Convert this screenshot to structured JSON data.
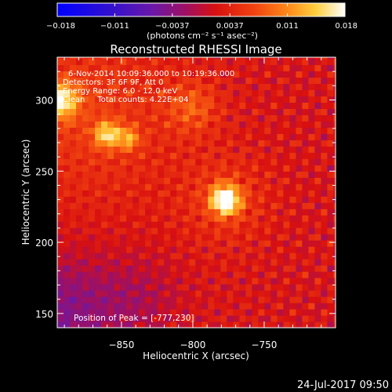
{
  "colorbar": {
    "ticks": [
      "−0.018",
      "−0.011",
      "−0.0037",
      "0.0037",
      "0.011",
      "0.018"
    ],
    "unit_label": "(photons cm⁻² s⁻¹ asec⁻²)",
    "range": [
      -0.018,
      0.018
    ]
  },
  "chart_data": {
    "type": "heatmap",
    "title": "Reconstructed RHESSI Image",
    "xlabel": "Heliocentric X (arcsec)",
    "ylabel": "Heliocentric Y (arcsec)",
    "xlim": [
      -895,
      -700
    ],
    "ylim": [
      140,
      330
    ],
    "xticks": [
      -850,
      -800,
      -750
    ],
    "yticks": [
      150,
      200,
      250,
      300
    ],
    "xtick_labels": [
      "−850",
      "−800",
      "−750"
    ],
    "ytick_labels": [
      "150",
      "200",
      "250",
      "300"
    ],
    "peak": {
      "x": -777,
      "y": 230
    },
    "secondary_sources": [
      {
        "x": -860,
        "y": 276
      },
      {
        "x": -893,
        "y": 300
      }
    ],
    "annotations": [
      "6-Nov-2014 10:09:36.000 to 10:19:36.000",
      "Detectors: 3F 6F 9F, Att 0",
      "Energy Range: 6.0 - 12.0 keV",
      "Clean     Total counts: 4.22E+04"
    ],
    "peak_label": "Position of Peak = [-777,230]"
  },
  "footer_timestamp": "24-Jul-2017 09:50"
}
